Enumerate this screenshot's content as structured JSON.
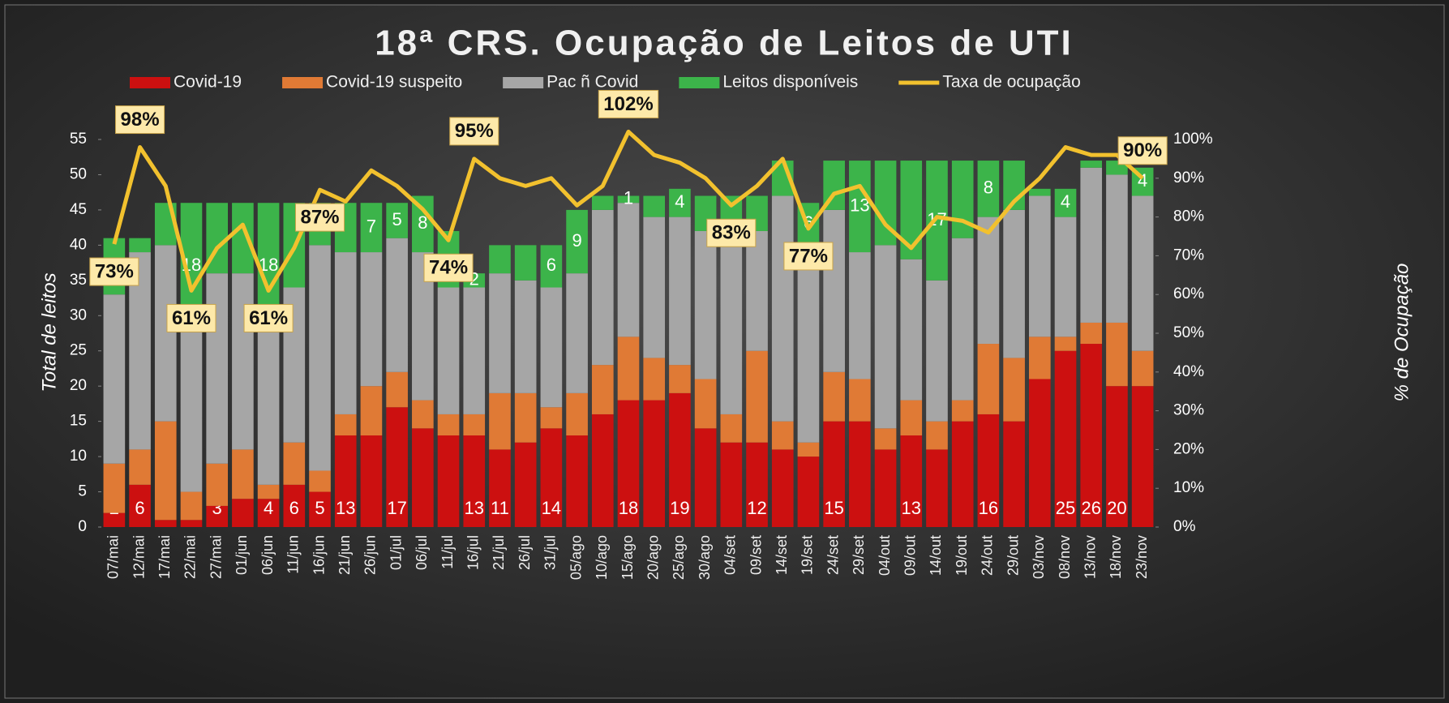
{
  "chart_data": {
    "type": "bar",
    "title": "18ª CRS. Ocupação de Leitos de UTI",
    "ylabel": "Total de leitos",
    "y2label": "% de Ocupação",
    "categories": [
      "07/mai",
      "12/mai",
      "17/mai",
      "22/mai",
      "27/mai",
      "01/jun",
      "06/jun",
      "11/jun",
      "16/jun",
      "21/jun",
      "26/jun",
      "01/jul",
      "06/jul",
      "11/jul",
      "16/jul",
      "21/jul",
      "26/jul",
      "31/jul",
      "05/ago",
      "10/ago",
      "15/ago",
      "20/ago",
      "25/ago",
      "30/ago",
      "04/set",
      "09/set",
      "14/set",
      "19/set",
      "24/set",
      "29/set",
      "04/out",
      "09/out",
      "14/out",
      "19/out",
      "24/out",
      "29/out",
      "03/nov",
      "08/nov",
      "13/nov",
      "18/nov",
      "23/nov"
    ],
    "series": [
      {
        "name": "Covid-19",
        "color": "#cc1010",
        "values": [
          2,
          6,
          1,
          1,
          3,
          4,
          4,
          6,
          5,
          13,
          13,
          17,
          14,
          13,
          13,
          11,
          12,
          14,
          13,
          16,
          18,
          18,
          19,
          14,
          12,
          12,
          11,
          10,
          15,
          15,
          11,
          13,
          11,
          15,
          16,
          15,
          21,
          25,
          26,
          20,
          20
        ],
        "value_labels": [
          "2",
          "6",
          "1",
          "1",
          "3",
          null,
          "4",
          "6",
          "5",
          "13",
          null,
          "17",
          null,
          null,
          "13",
          "11",
          null,
          "14",
          null,
          null,
          "18",
          null,
          "19",
          null,
          null,
          "12",
          null,
          null,
          "15",
          null,
          null,
          "13",
          null,
          null,
          "16",
          null,
          null,
          "25",
          "26",
          "20",
          null
        ]
      },
      {
        "name": "Covid-19 suspeito",
        "color": "#e07a35",
        "values": [
          7,
          5,
          14,
          4,
          6,
          7,
          2,
          6,
          3,
          3,
          7,
          5,
          4,
          3,
          3,
          8,
          7,
          3,
          6,
          7,
          9,
          6,
          4,
          7,
          4,
          13,
          4,
          2,
          7,
          6,
          3,
          5,
          4,
          3,
          10,
          9,
          6,
          2,
          3,
          9,
          5
        ],
        "value_labels": [
          "7",
          "5",
          "14",
          "4",
          "6",
          null,
          "2",
          "6",
          "3",
          "3",
          "7",
          "5",
          "4",
          null,
          "3",
          "8",
          "7",
          null,
          "6",
          null,
          "9",
          "6",
          null,
          "7",
          "4",
          "13",
          null,
          "2",
          "7",
          null,
          "3",
          "5",
          null,
          "3",
          null,
          "9",
          "6",
          null,
          null,
          "9",
          "5"
        ]
      },
      {
        "name": "Pac ñ Covid",
        "color": "#a6a6a6",
        "values": [
          24,
          28,
          25,
          23,
          27,
          25,
          22,
          22,
          32,
          23,
          19,
          19,
          21,
          18,
          18,
          17,
          16,
          17,
          17,
          22,
          19,
          20,
          21,
          21,
          24,
          17,
          32,
          28,
          23,
          18,
          26,
          20,
          20,
          23,
          18,
          21,
          20,
          17,
          22,
          21,
          22
        ]
      },
      {
        "name": "Leitos disponíveis",
        "color": "#3cb44a",
        "values": [
          8,
          2,
          6,
          18,
          10,
          10,
          18,
          12,
          6,
          7,
          7,
          5,
          8,
          8,
          2,
          4,
          5,
          6,
          9,
          2,
          1,
          3,
          4,
          5,
          7,
          5,
          5,
          6,
          7,
          13,
          12,
          14,
          17,
          11,
          8,
          7,
          1,
          4,
          1,
          2,
          4
        ],
        "value_labels": [
          null,
          null,
          null,
          "18",
          null,
          null,
          "18",
          null,
          null,
          null,
          "7",
          "5",
          "8",
          null,
          "2",
          null,
          null,
          "6",
          "9",
          null,
          "1",
          null,
          "4",
          null,
          null,
          null,
          null,
          "6",
          null,
          "13",
          null,
          null,
          "17",
          null,
          "8",
          null,
          null,
          "4",
          null,
          null,
          "4"
        ]
      },
      {
        "name": "Taxa de ocupação",
        "color": "#f2c12e",
        "type": "line",
        "axis": "y2",
        "values": [
          73,
          98,
          88,
          61,
          72,
          78,
          61,
          72,
          87,
          84,
          92,
          88,
          82,
          74,
          95,
          90,
          88,
          90,
          83,
          88,
          102,
          96,
          94,
          90,
          83,
          88,
          95,
          77,
          86,
          88,
          78,
          72,
          80,
          79,
          76,
          84,
          90,
          98,
          96,
          96,
          90
        ],
        "value_labels": [
          "73%",
          "98%",
          null,
          "61%",
          null,
          null,
          "61%",
          null,
          "87%",
          null,
          null,
          null,
          null,
          "74%",
          "95%",
          null,
          null,
          null,
          null,
          null,
          "102%",
          null,
          null,
          null,
          "83%",
          null,
          null,
          "77%",
          null,
          null,
          null,
          null,
          null,
          null,
          null,
          null,
          null,
          null,
          null,
          null,
          "90%"
        ]
      }
    ],
    "ylim": [
      0,
      55
    ],
    "yticks": [
      0,
      5,
      10,
      15,
      20,
      25,
      30,
      35,
      40,
      45,
      50,
      55
    ],
    "y2lim": [
      0,
      100
    ],
    "y2ticks": [
      {
        "value": 0,
        "label": "0%"
      },
      {
        "value": 10,
        "label": "10%"
      },
      {
        "value": 20,
        "label": "20%"
      },
      {
        "value": 30,
        "label": "30%"
      },
      {
        "value": 40,
        "label": "40%"
      },
      {
        "value": 50,
        "label": "50%"
      },
      {
        "value": 60,
        "label": "60%"
      },
      {
        "value": 70,
        "label": "70%"
      },
      {
        "value": 80,
        "label": "80%"
      },
      {
        "value": 90,
        "label": "90%"
      },
      {
        "value": 100,
        "label": "100%"
      }
    ],
    "legend": "top"
  }
}
